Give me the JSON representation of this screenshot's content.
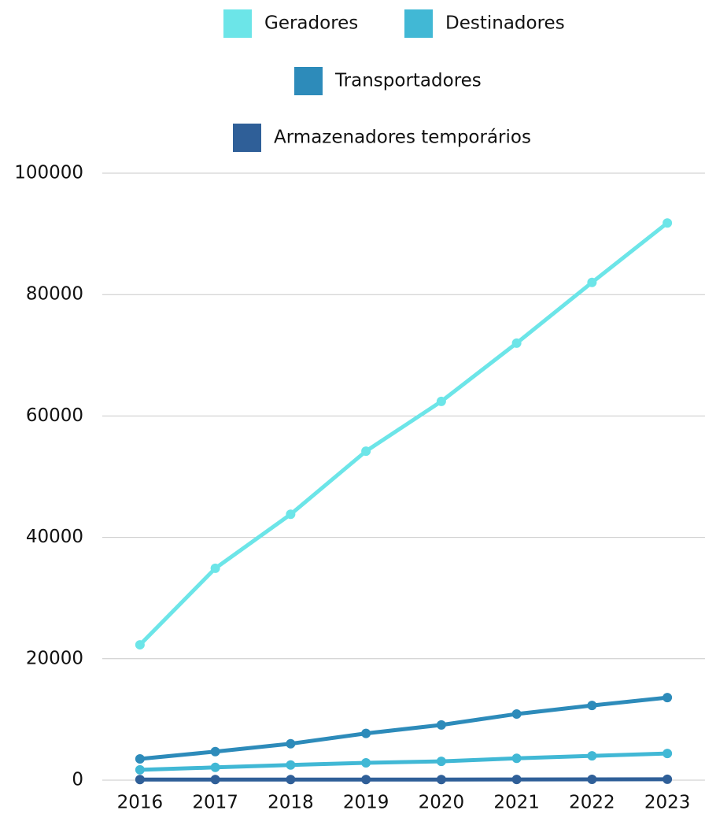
{
  "chart_data": {
    "type": "line",
    "categories": [
      "2016",
      "2017",
      "2018",
      "2019",
      "2020",
      "2021",
      "2022",
      "2023"
    ],
    "series": [
      {
        "name": "Geradores",
        "color": "#6ce5e8",
        "values": [
          22300,
          34900,
          43800,
          54200,
          62400,
          72000,
          82000,
          91800
        ]
      },
      {
        "name": "Destinadores",
        "color": "#41b8d5",
        "values": [
          1700,
          2100,
          2500,
          2850,
          3100,
          3600,
          4000,
          4400
        ]
      },
      {
        "name": "Transportadores",
        "color": "#2d8bba",
        "values": [
          3500,
          4700,
          6000,
          7700,
          9100,
          10900,
          12300,
          13600
        ]
      },
      {
        "name": "Armazenadores temporários",
        "color": "#2f5f98",
        "values": [
          100,
          100,
          100,
          100,
          100,
          120,
          130,
          140
        ]
      }
    ],
    "ylim": [
      0,
      100000
    ],
    "yticks": [
      0,
      20000,
      40000,
      60000,
      80000,
      100000
    ],
    "grid": true,
    "legend": "top"
  }
}
